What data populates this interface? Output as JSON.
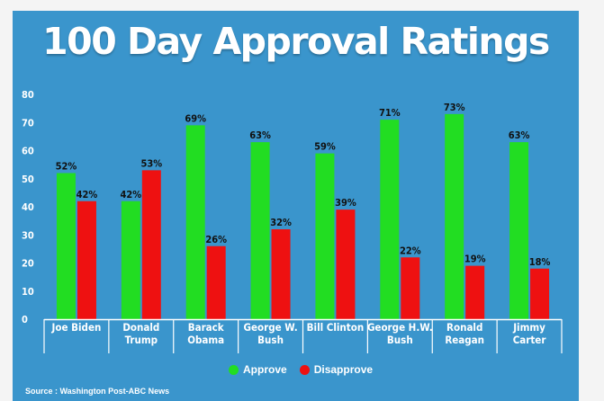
{
  "chart_data": {
    "type": "bar",
    "title": "100 Day Approval Ratings",
    "xlabel": "",
    "ylabel": "",
    "ylim": [
      0,
      80
    ],
    "yticks": [
      0,
      10,
      20,
      30,
      40,
      50,
      60,
      70,
      80
    ],
    "grid": false,
    "legend_position": "bottom-center",
    "categories": [
      [
        "Joe Biden"
      ],
      [
        "Donald",
        "Trump"
      ],
      [
        "Barack",
        "Obama"
      ],
      [
        "George W.",
        "Bush"
      ],
      [
        "Bill Clinton"
      ],
      [
        "George H.W.",
        "Bush"
      ],
      [
        "Ronald",
        "Reagan"
      ],
      [
        "Jimmy",
        "Carter"
      ]
    ],
    "series": [
      {
        "name": "Approve",
        "color": "#22dd22",
        "values": [
          52,
          42,
          69,
          63,
          59,
          71,
          73,
          63
        ],
        "labels": [
          "52%",
          "42%",
          "69%",
          "63%",
          "59%",
          "71%",
          "73%",
          "63%"
        ]
      },
      {
        "name": "Disapprove",
        "color": "#ee1111",
        "values": [
          42,
          53,
          26,
          32,
          39,
          22,
          19,
          18
        ],
        "labels": [
          "42%",
          "53%",
          "26%",
          "32%",
          "39%",
          "22%",
          "19%",
          "18%"
        ]
      }
    ],
    "source": "Source : Washington Post-ABC News"
  },
  "colors": {
    "background": "#3a95cc",
    "text": "#ffffff",
    "axis": "#ffffff"
  }
}
